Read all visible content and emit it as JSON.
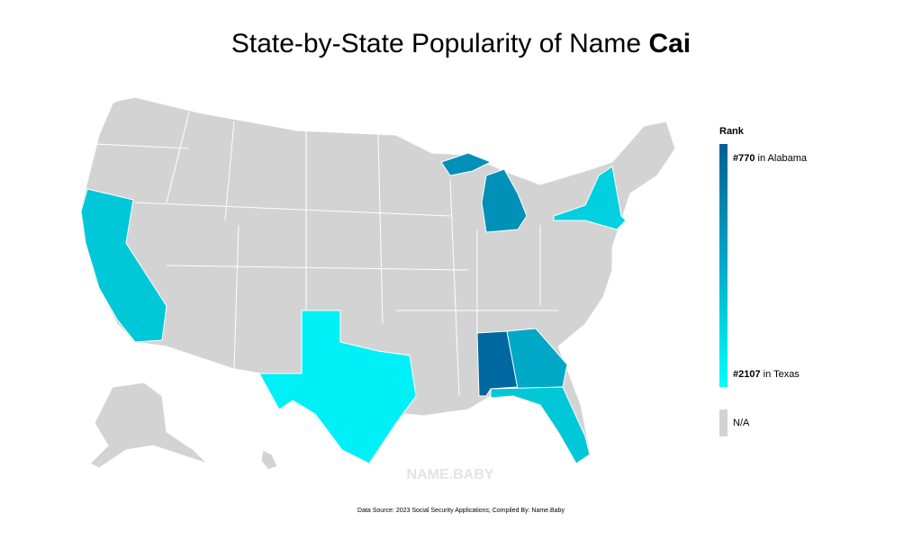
{
  "header": {
    "title": "State-by-State Popularity of Name",
    "name": "Cai"
  },
  "legend": {
    "title": "Rank",
    "top": {
      "rank": "#770",
      "label": "in Alabama"
    },
    "bottom": {
      "rank": "#2107",
      "label": "in Texas"
    },
    "na": "N/A"
  },
  "watermark": "NAME.BABY",
  "footer": "Data Source: 2023 Social Security Applications; Compiled By: Name.Baby"
}
